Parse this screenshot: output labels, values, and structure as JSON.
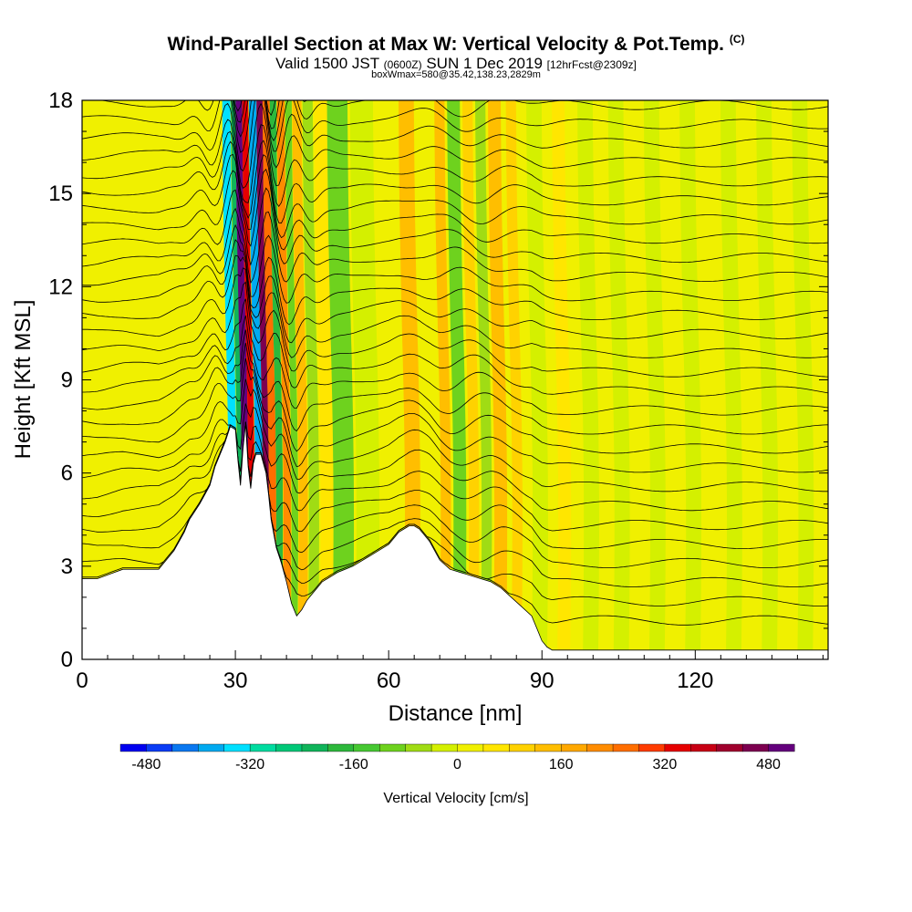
{
  "header": {
    "title": "Wind-Parallel Section at Max W: Vertical Velocity & Pot.Temp.",
    "title_mark": "(C)",
    "valid_prefix": "Valid 1500 JST",
    "valid_utc": "(0600Z)",
    "valid_date": "SUN 1 Dec 2019",
    "forecast": "[12hrFcst@2309z]",
    "box_info": "boxWmax=580@35.42,138.23,2829m"
  },
  "chart_data": {
    "type": "heatmap",
    "title": "Wind-Parallel Section at Max W: Vertical Velocity & Pot.Temp.",
    "xlabel": "Distance [nm]",
    "ylabel": "Height [Kft MSL]",
    "xlim": [
      0,
      146
    ],
    "ylim": [
      0,
      18
    ],
    "x_ticks": [
      0,
      30,
      60,
      90,
      120
    ],
    "y_ticks": [
      0,
      3,
      6,
      9,
      12,
      15,
      18
    ],
    "terrain": {
      "x": [
        0,
        3,
        8,
        15,
        18,
        20,
        21,
        23,
        25,
        26,
        27,
        28,
        29,
        30,
        30.5,
        31,
        31.5,
        32,
        32.5,
        33,
        33.5,
        34,
        35,
        36,
        36.5,
        37,
        38,
        39,
        40,
        41,
        42,
        43,
        44,
        45,
        46,
        47,
        48,
        50,
        53,
        56,
        58,
        60,
        61,
        62,
        63,
        64,
        65,
        66,
        67,
        68,
        69,
        70,
        72,
        74,
        76,
        78,
        80,
        82,
        84,
        86,
        88,
        89,
        90,
        91,
        92,
        94,
        96,
        100,
        110,
        120,
        130,
        140,
        146
      ],
      "y": [
        2.6,
        2.6,
        2.9,
        2.9,
        3.5,
        4.1,
        4.5,
        5.0,
        5.6,
        6.2,
        6.6,
        7.0,
        7.5,
        7.4,
        6.4,
        5.6,
        6.8,
        7.6,
        6.2,
        5.5,
        6.3,
        6.6,
        6.6,
        6.0,
        5.3,
        4.5,
        3.6,
        3.1,
        2.5,
        1.8,
        1.4,
        1.6,
        1.9,
        2.1,
        2.3,
        2.5,
        2.6,
        2.8,
        3.0,
        3.3,
        3.5,
        3.7,
        3.9,
        4.1,
        4.2,
        4.3,
        4.3,
        4.2,
        4.0,
        3.8,
        3.5,
        3.2,
        2.9,
        2.8,
        2.7,
        2.6,
        2.5,
        2.3,
        2.0,
        1.7,
        1.4,
        1.0,
        0.6,
        0.4,
        0.3,
        0.3,
        0.3,
        0.3,
        0.3,
        0.3,
        0.3,
        0.3,
        0.3
      ]
    },
    "velocity_bands": [
      {
        "x": 28.5,
        "w": 1.6,
        "value": -360
      },
      {
        "x": 30.2,
        "w": 1.4,
        "value": -240
      },
      {
        "x": 31.1,
        "w": 1.3,
        "value": 480
      },
      {
        "x": 32.4,
        "w": 1.2,
        "value": 320
      },
      {
        "x": 33.7,
        "w": 1.5,
        "value": -400
      },
      {
        "x": 35.2,
        "w": 1.2,
        "value": 440
      },
      {
        "x": 36.4,
        "w": 1.4,
        "value": 240
      },
      {
        "x": 37.8,
        "w": 1.3,
        "value": -200
      },
      {
        "x": 39.2,
        "w": 1.5,
        "value": 200
      },
      {
        "x": 40.8,
        "w": 1.3,
        "value": -120
      },
      {
        "x": 42.2,
        "w": 1.8,
        "value": 120
      },
      {
        "x": 44.2,
        "w": 2.0,
        "value": -80
      },
      {
        "x": 46.5,
        "w": 2.5,
        "value": 40
      },
      {
        "x": 49.0,
        "w": 4.0,
        "value": -120
      },
      {
        "x": 53.5,
        "w": 4.5,
        "value": -40
      },
      {
        "x": 63.0,
        "w": 3.0,
        "value": 120
      },
      {
        "x": 70.0,
        "w": 2.0,
        "value": 120
      },
      {
        "x": 72.5,
        "w": 2.5,
        "value": -120
      },
      {
        "x": 75.5,
        "w": 2.0,
        "value": 80
      },
      {
        "x": 78.0,
        "w": 2.0,
        "value": -80
      },
      {
        "x": 80.5,
        "w": 2.5,
        "value": 120
      },
      {
        "x": 84.0,
        "w": 2.0,
        "value": 80
      },
      {
        "x": 88.0,
        "w": 3.0,
        "value": -40
      },
      {
        "x": 93.0,
        "w": 2.5,
        "value": 40
      },
      {
        "x": 98.0,
        "w": 3.0,
        "value": -40
      },
      {
        "x": 104.0,
        "w": 3.0,
        "value": -40
      },
      {
        "x": 111.0,
        "w": 3.0,
        "value": -40
      },
      {
        "x": 118.0,
        "w": 3.0,
        "value": -40
      },
      {
        "x": 126.0,
        "w": 3.0,
        "value": -40
      },
      {
        "x": 133.0,
        "w": 3.0,
        "value": -40
      },
      {
        "x": 140.0,
        "w": 3.0,
        "value": -40
      }
    ],
    "colorbar": {
      "label": "Vertical Velocity [cm/s]",
      "min": -520,
      "max": 520,
      "step": 40,
      "tick_labels": [
        "-480",
        "-320",
        "-160",
        "0",
        "160",
        "320",
        "480"
      ],
      "tick_values": [
        -480,
        -320,
        -160,
        0,
        160,
        320,
        480
      ],
      "colors": [
        "#0000f0",
        "#0a3cf5",
        "#0a78f0",
        "#00aaf0",
        "#00e0ff",
        "#00dca0",
        "#00c878",
        "#10b45a",
        "#2db83c",
        "#46c832",
        "#6ed21e",
        "#a0dc14",
        "#d4f000",
        "#f0f000",
        "#ffe600",
        "#ffd200",
        "#ffbe00",
        "#ffa800",
        "#ff8c00",
        "#ff6e00",
        "#ff3c00",
        "#e60000",
        "#c80014",
        "#a0002d",
        "#7d0050",
        "#64007d"
      ]
    }
  }
}
